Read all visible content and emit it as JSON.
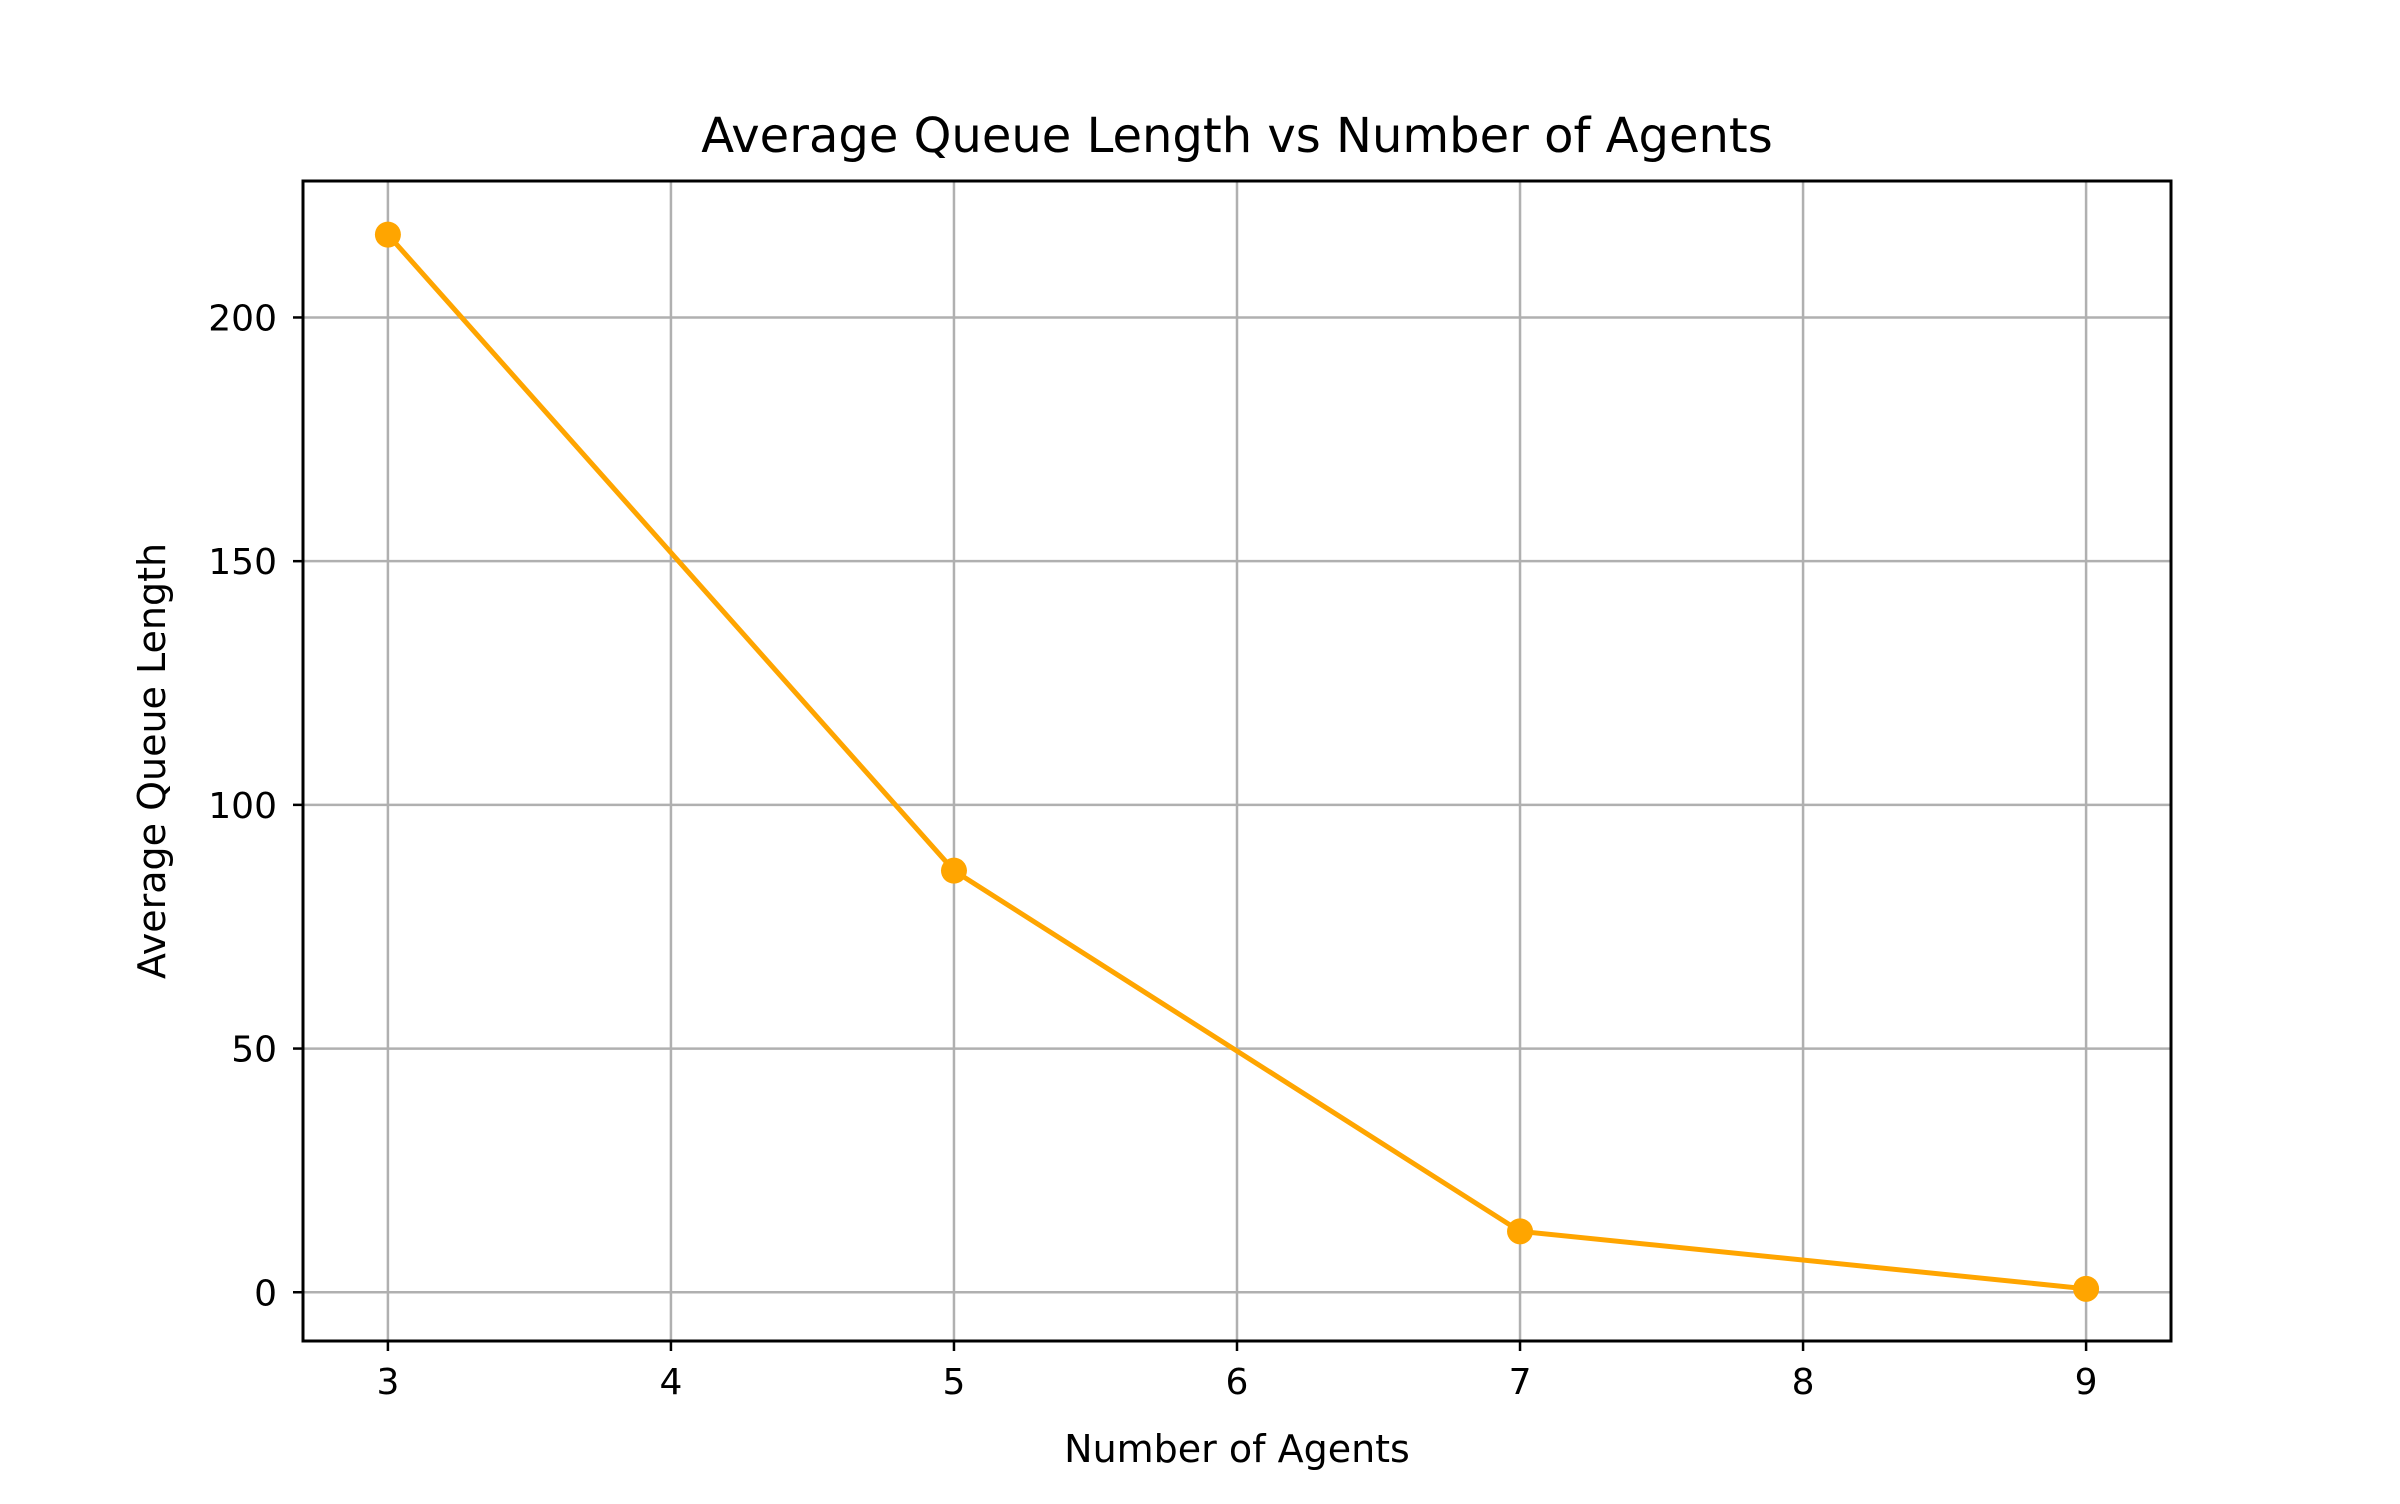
{
  "chart_data": {
    "type": "line",
    "title": "Average Queue Length vs Number of Agents",
    "xlabel": "Number of Agents",
    "ylabel": "Average Queue Length",
    "x": [
      3,
      5,
      7,
      9
    ],
    "series": [
      {
        "values": [
          217,
          86.5,
          12.5,
          0.7
        ],
        "color": "#FFA500",
        "marker": "circle"
      }
    ],
    "xlim": [
      2.7,
      9.3
    ],
    "ylim": [
      -10,
      228
    ],
    "xticks": [
      3,
      4,
      5,
      6,
      7,
      8,
      9
    ],
    "yticks": [
      0,
      50,
      100,
      150,
      200
    ],
    "grid": true,
    "grid_color": "#b0b0b0",
    "legend": "none"
  }
}
